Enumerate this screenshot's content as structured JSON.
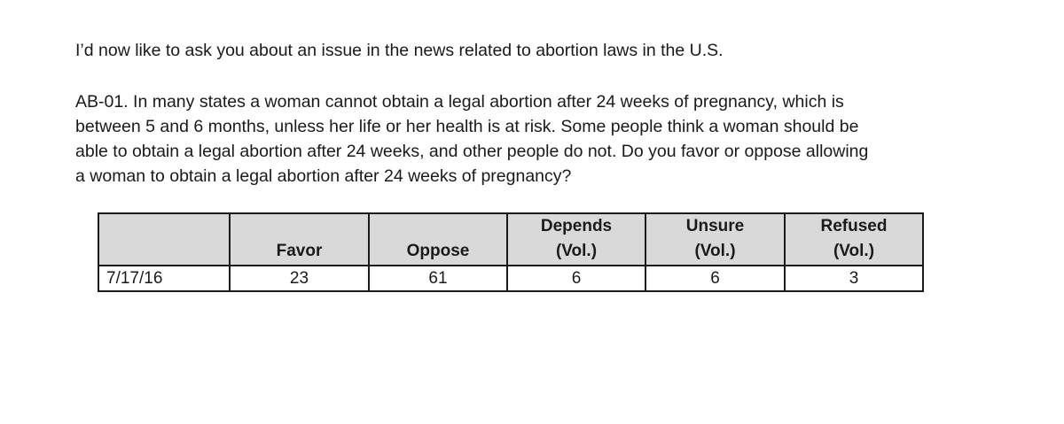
{
  "intro": "I’d now like to ask you about an issue in the news related to abortion laws in the U.S.",
  "question": {
    "lines": [
      "AB-01. In many states a woman cannot obtain a legal abortion after 24 weeks of pregnancy, which is",
      "between 5 and 6 months, unless her life or her health is at risk.  Some people think a woman should be",
      "able to obtain a legal abortion after 24 weeks, and other people do not. Do you favor or oppose allowing",
      "a woman to obtain a legal abortion after 24 weeks of pregnancy?"
    ]
  },
  "table": {
    "header": {
      "blank": "",
      "favor": "Favor",
      "oppose": "Oppose",
      "depends": [
        "Depends",
        "(Vol.)"
      ],
      "unsure": [
        "Unsure",
        "(Vol.)"
      ],
      "refused": [
        "Refused",
        "(Vol.)"
      ]
    },
    "rows": [
      {
        "date": "7/17/16",
        "favor": "23",
        "oppose": "61",
        "depends": "6",
        "unsure": "6",
        "refused": "3"
      }
    ]
  }
}
